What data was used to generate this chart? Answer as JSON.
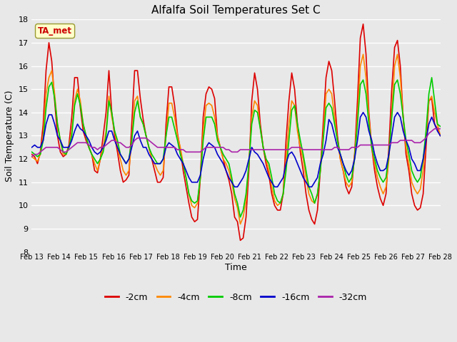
{
  "title": "Alfalfa Soil Temperatures Set C",
  "xlabel": "Time",
  "ylabel": "Soil Temperature (C)",
  "ylim": [
    8.0,
    18.0
  ],
  "yticks": [
    8.0,
    9.0,
    10.0,
    11.0,
    12.0,
    13.0,
    14.0,
    15.0,
    16.0,
    17.0,
    18.0
  ],
  "xtick_labels": [
    "Feb 13",
    "Feb 14",
    "Feb 15",
    "Feb 16",
    "Feb 17",
    "Feb 18",
    "Feb 19",
    "Feb 20",
    "Feb 21",
    "Feb 22",
    "Feb 23",
    "Feb 24",
    "Feb 25",
    "Feb 26",
    "Feb 27",
    "Feb 28"
  ],
  "colors": {
    "-2cm": "#dd0000",
    "-4cm": "#ff8800",
    "-8cm": "#00cc00",
    "-16cm": "#0000cc",
    "-32cm": "#aa22aa"
  },
  "annotation_text": "TA_met",
  "annotation_color": "#cc0000",
  "annotation_bg": "#ffffcc",
  "annotation_edge": "#999933",
  "background_color": "#e8e8e8",
  "grid_color": "#ffffff",
  "figsize": [
    6.4,
    4.8
  ],
  "dpi": 100,
  "series": {
    "-2cm": [
      12.2,
      12.1,
      11.8,
      12.3,
      13.5,
      15.8,
      17.0,
      16.2,
      14.5,
      13.0,
      12.3,
      12.1,
      12.2,
      12.6,
      13.8,
      15.5,
      15.5,
      14.2,
      13.2,
      12.8,
      12.5,
      12.2,
      11.5,
      11.4,
      12.0,
      13.0,
      14.0,
      15.8,
      14.0,
      13.0,
      12.3,
      11.5,
      11.0,
      11.1,
      11.3,
      13.5,
      15.8,
      15.8,
      14.6,
      13.7,
      13.0,
      12.5,
      12.0,
      11.5,
      11.0,
      11.0,
      11.2,
      13.5,
      15.1,
      15.1,
      14.3,
      13.1,
      12.4,
      11.5,
      10.8,
      10.1,
      9.5,
      9.3,
      9.4,
      11.2,
      13.8,
      14.8,
      15.1,
      15.0,
      14.6,
      13.0,
      12.5,
      12.0,
      11.5,
      11.1,
      10.5,
      9.5,
      9.3,
      8.5,
      8.6,
      9.5,
      11.5,
      14.5,
      15.7,
      15.0,
      13.5,
      12.5,
      11.8,
      11.3,
      10.5,
      10.0,
      9.8,
      9.8,
      10.5,
      12.8,
      14.5,
      15.7,
      15.0,
      13.5,
      12.3,
      11.5,
      10.5,
      9.8,
      9.4,
      9.2,
      9.8,
      11.5,
      13.5,
      15.5,
      16.2,
      15.8,
      14.5,
      13.0,
      12.0,
      11.5,
      10.8,
      10.5,
      10.8,
      12.2,
      14.5,
      17.2,
      17.8,
      16.5,
      14.0,
      12.5,
      11.5,
      10.8,
      10.3,
      10.0,
      10.5,
      12.5,
      15.0,
      16.8,
      17.1,
      16.0,
      13.8,
      12.2,
      11.5,
      10.5,
      10.0,
      9.8,
      9.9,
      10.5,
      12.5,
      14.5,
      14.6,
      13.5,
      13.3,
      13.0
    ],
    "-4cm": [
      12.1,
      12.0,
      11.9,
      12.2,
      13.0,
      14.8,
      15.5,
      15.8,
      14.8,
      13.5,
      12.8,
      12.2,
      12.2,
      12.5,
      13.2,
      14.5,
      15.0,
      14.5,
      13.5,
      13.0,
      12.5,
      12.2,
      11.8,
      11.5,
      12.0,
      12.5,
      13.2,
      14.7,
      13.8,
      13.2,
      12.5,
      12.0,
      11.5,
      11.3,
      11.5,
      12.8,
      14.5,
      14.7,
      13.8,
      13.5,
      13.0,
      12.5,
      12.0,
      11.8,
      11.5,
      11.3,
      11.5,
      13.0,
      14.4,
      14.4,
      13.8,
      13.0,
      12.5,
      11.8,
      11.2,
      10.5,
      10.0,
      9.9,
      10.1,
      11.2,
      13.2,
      14.3,
      14.4,
      14.3,
      13.8,
      13.0,
      12.5,
      12.0,
      11.8,
      11.5,
      11.0,
      10.3,
      9.9,
      9.2,
      9.5,
      10.2,
      11.8,
      13.8,
      14.5,
      14.3,
      13.3,
      12.5,
      12.0,
      11.5,
      10.8,
      10.2,
      10.0,
      10.1,
      10.5,
      12.0,
      13.5,
      14.5,
      14.3,
      13.2,
      12.5,
      12.0,
      11.2,
      10.5,
      10.2,
      10.1,
      10.5,
      11.5,
      13.0,
      14.8,
      15.0,
      14.8,
      13.8,
      12.8,
      12.0,
      11.5,
      11.0,
      10.8,
      11.0,
      12.2,
      13.8,
      16.0,
      16.5,
      15.5,
      13.8,
      12.5,
      11.8,
      11.2,
      10.8,
      10.5,
      10.8,
      12.0,
      14.0,
      16.0,
      16.5,
      15.5,
      13.8,
      12.5,
      11.8,
      11.0,
      10.7,
      10.5,
      10.7,
      11.5,
      13.0,
      14.5,
      14.7,
      14.0,
      13.5,
      13.0
    ],
    "-8cm": [
      12.3,
      12.2,
      12.1,
      12.2,
      12.8,
      14.2,
      15.1,
      15.3,
      14.6,
      13.5,
      12.8,
      12.3,
      12.2,
      12.5,
      13.0,
      14.3,
      14.8,
      14.3,
      13.5,
      13.0,
      12.5,
      12.2,
      12.0,
      11.8,
      12.0,
      12.3,
      13.0,
      14.5,
      14.0,
      13.2,
      12.8,
      12.2,
      12.0,
      11.8,
      12.0,
      12.8,
      14.0,
      14.5,
      13.8,
      13.5,
      13.0,
      12.5,
      12.2,
      12.0,
      11.8,
      11.8,
      12.0,
      13.0,
      13.8,
      13.8,
      13.3,
      12.8,
      12.2,
      11.8,
      11.2,
      10.5,
      10.2,
      10.1,
      10.2,
      11.2,
      12.8,
      13.8,
      13.8,
      13.8,
      13.5,
      12.8,
      12.5,
      12.2,
      12.0,
      11.8,
      11.2,
      10.5,
      10.1,
      9.5,
      9.8,
      10.5,
      11.8,
      13.5,
      14.1,
      14.0,
      13.3,
      12.5,
      12.0,
      11.8,
      11.2,
      10.5,
      10.2,
      10.1,
      10.5,
      11.5,
      12.8,
      14.1,
      14.3,
      13.5,
      12.8,
      12.2,
      11.5,
      10.8,
      10.5,
      10.1,
      10.5,
      11.5,
      12.8,
      14.2,
      14.4,
      14.2,
      13.5,
      12.8,
      12.2,
      11.8,
      11.3,
      11.0,
      11.2,
      12.0,
      13.5,
      15.2,
      15.4,
      14.8,
      13.5,
      12.5,
      12.0,
      11.5,
      11.2,
      11.0,
      11.2,
      12.2,
      13.8,
      15.2,
      15.4,
      14.8,
      13.8,
      12.8,
      12.2,
      11.5,
      11.2,
      11.0,
      11.2,
      12.0,
      13.2,
      14.8,
      15.5,
      14.5,
      13.5,
      13.4
    ],
    "-16cm": [
      12.5,
      12.6,
      12.5,
      12.5,
      12.8,
      13.5,
      13.9,
      13.9,
      13.5,
      13.0,
      12.8,
      12.5,
      12.5,
      12.5,
      12.8,
      13.2,
      13.5,
      13.3,
      13.2,
      13.0,
      12.8,
      12.5,
      12.3,
      12.2,
      12.3,
      12.5,
      12.8,
      13.2,
      13.2,
      12.8,
      12.5,
      12.2,
      12.0,
      11.8,
      12.0,
      12.5,
      13.0,
      13.2,
      12.8,
      12.5,
      12.5,
      12.2,
      12.0,
      11.8,
      11.8,
      11.8,
      12.0,
      12.5,
      12.7,
      12.6,
      12.5,
      12.2,
      12.0,
      11.8,
      11.5,
      11.2,
      11.0,
      11.0,
      11.0,
      11.3,
      12.0,
      12.5,
      12.7,
      12.6,
      12.5,
      12.2,
      12.0,
      11.8,
      11.5,
      11.2,
      11.0,
      10.8,
      10.8,
      11.0,
      11.2,
      11.5,
      12.0,
      12.5,
      12.3,
      12.2,
      12.0,
      11.8,
      11.5,
      11.2,
      11.0,
      10.8,
      10.8,
      11.0,
      11.2,
      11.8,
      12.2,
      12.3,
      12.1,
      11.8,
      11.5,
      11.2,
      11.0,
      10.8,
      10.8,
      11.0,
      11.2,
      11.8,
      12.2,
      12.8,
      13.7,
      13.5,
      13.0,
      12.5,
      12.2,
      11.8,
      11.5,
      11.3,
      11.5,
      12.0,
      12.8,
      13.8,
      14.0,
      13.8,
      13.2,
      12.8,
      12.2,
      11.8,
      11.5,
      11.5,
      11.6,
      12.2,
      13.0,
      13.8,
      14.0,
      13.8,
      13.2,
      12.8,
      12.5,
      12.0,
      11.8,
      11.5,
      11.5,
      12.0,
      12.8,
      13.5,
      13.8,
      13.5,
      13.2,
      13.0
    ],
    "-32cm": [
      12.1,
      12.2,
      12.2,
      12.3,
      12.4,
      12.5,
      12.5,
      12.5,
      12.5,
      12.5,
      12.4,
      12.3,
      12.3,
      12.4,
      12.5,
      12.6,
      12.7,
      12.7,
      12.7,
      12.7,
      12.6,
      12.5,
      12.5,
      12.4,
      12.5,
      12.5,
      12.6,
      12.7,
      12.8,
      12.8,
      12.7,
      12.7,
      12.6,
      12.5,
      12.5,
      12.6,
      12.8,
      12.9,
      12.9,
      12.9,
      12.9,
      12.8,
      12.7,
      12.6,
      12.5,
      12.5,
      12.5,
      12.5,
      12.5,
      12.5,
      12.5,
      12.4,
      12.4,
      12.4,
      12.3,
      12.3,
      12.3,
      12.3,
      12.3,
      12.3,
      12.4,
      12.5,
      12.5,
      12.5,
      12.5,
      12.5,
      12.5,
      12.5,
      12.4,
      12.4,
      12.3,
      12.3,
      12.3,
      12.4,
      12.4,
      12.4,
      12.4,
      12.4,
      12.4,
      12.4,
      12.4,
      12.4,
      12.4,
      12.4,
      12.4,
      12.4,
      12.4,
      12.4,
      12.4,
      12.4,
      12.4,
      12.5,
      12.5,
      12.5,
      12.5,
      12.4,
      12.4,
      12.4,
      12.4,
      12.4,
      12.4,
      12.4,
      12.4,
      12.4,
      12.4,
      12.4,
      12.5,
      12.5,
      12.4,
      12.4,
      12.4,
      12.4,
      12.5,
      12.5,
      12.5,
      12.6,
      12.6,
      12.6,
      12.6,
      12.6,
      12.6,
      12.6,
      12.6,
      12.6,
      12.6,
      12.6,
      12.7,
      12.7,
      12.7,
      12.8,
      12.8,
      12.8,
      12.8,
      12.8,
      12.7,
      12.7,
      12.7,
      12.8,
      12.9,
      13.1,
      13.2,
      13.3,
      13.3,
      13.3
    ]
  }
}
